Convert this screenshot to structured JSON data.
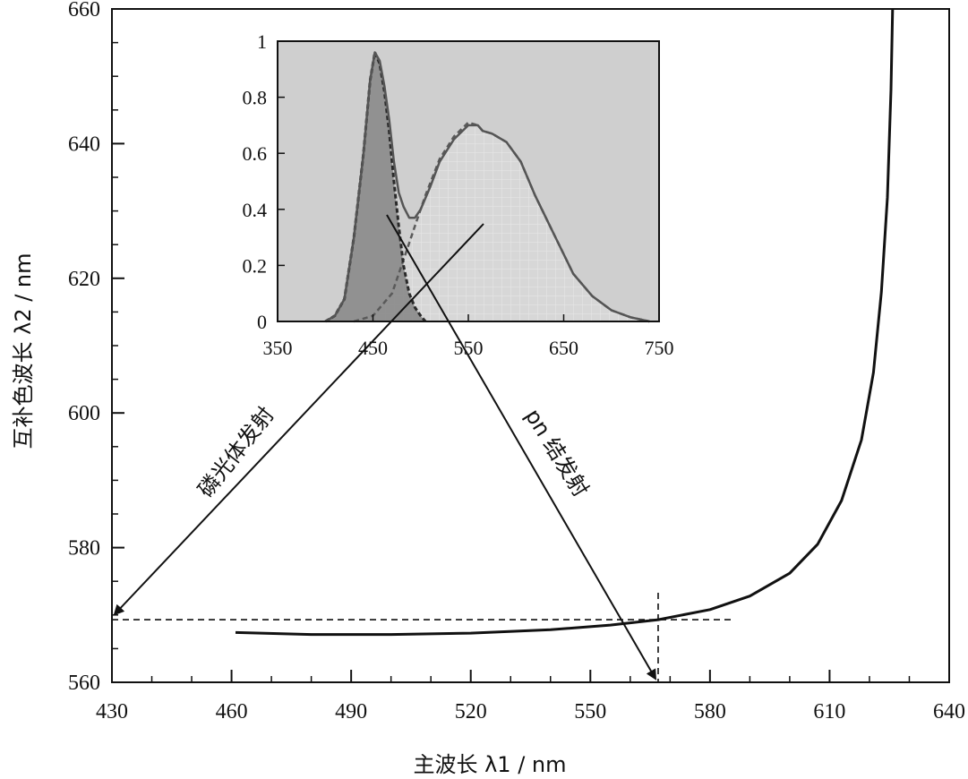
{
  "chart_data": [
    {
      "type": "line",
      "role": "main",
      "xlabel": "主波长 λ1 / nm",
      "ylabel": "互补色波长 λ2 / nm",
      "xlim": [
        430,
        640
      ],
      "ylim": [
        560,
        660
      ],
      "xticks": [
        "430",
        "460",
        "490",
        "520",
        "550",
        "580",
        "610",
        "640"
      ],
      "yticks": [
        "560",
        "580",
        "600",
        "620",
        "640",
        "660"
      ],
      "grid": false,
      "series": [
        {
          "x": [
            461,
            480,
            500,
            520,
            540,
            555,
            567,
            580,
            590,
            600,
            607,
            613,
            618,
            621,
            623,
            624.5,
            625.4,
            625.8
          ],
          "y": [
            567.4,
            567.1,
            567.1,
            567.3,
            567.8,
            568.5,
            569.3,
            570.8,
            572.8,
            576.2,
            580.5,
            587,
            596,
            606,
            618,
            632,
            648,
            660
          ]
        }
      ],
      "reference_lines": {
        "horizontal_dashed_y": 569.3,
        "vertical_dashed_x": 567
      },
      "annotations": [
        {
          "text": "磷光体发射"
        },
        {
          "text": "pn 结发射"
        }
      ]
    },
    {
      "type": "area",
      "role": "inset",
      "xlim": [
        350,
        750
      ],
      "ylim": [
        0,
        1
      ],
      "xticks": [
        "350",
        "450",
        "550",
        "650",
        "750"
      ],
      "yticks": [
        "0",
        "0.2",
        "0.4",
        "0.6",
        "0.8",
        "1"
      ],
      "series": [
        {
          "x": [
            400,
            410,
            420,
            430,
            440,
            447,
            452,
            457,
            462,
            467,
            472,
            477,
            482,
            488,
            494,
            500,
            505
          ],
          "y": [
            0.0,
            0.02,
            0.08,
            0.3,
            0.6,
            0.86,
            0.96,
            0.92,
            0.82,
            0.68,
            0.5,
            0.34,
            0.2,
            0.1,
            0.05,
            0.02,
            0.0
          ]
        },
        {
          "x": [
            430,
            450,
            470,
            485,
            495,
            505,
            520,
            535,
            550,
            560,
            565,
            575,
            590,
            605,
            620,
            640,
            660,
            680,
            700,
            720,
            740
          ],
          "y": [
            0.0,
            0.02,
            0.1,
            0.25,
            0.35,
            0.45,
            0.58,
            0.66,
            0.71,
            0.7,
            0.68,
            0.67,
            0.64,
            0.57,
            0.45,
            0.31,
            0.17,
            0.09,
            0.04,
            0.015,
            0.0
          ]
        },
        {
          "x": [
            400,
            410,
            420,
            430,
            440,
            447,
            452,
            457,
            462,
            467,
            472,
            477,
            482,
            488,
            494,
            500,
            510,
            520,
            535,
            550,
            560,
            565,
            575,
            590,
            605,
            620,
            640,
            660,
            680,
            700,
            720,
            740
          ],
          "y": [
            0.0,
            0.02,
            0.08,
            0.3,
            0.6,
            0.86,
            0.96,
            0.93,
            0.84,
            0.72,
            0.57,
            0.46,
            0.41,
            0.37,
            0.37,
            0.4,
            0.48,
            0.57,
            0.65,
            0.7,
            0.7,
            0.68,
            0.67,
            0.64,
            0.57,
            0.45,
            0.31,
            0.17,
            0.09,
            0.04,
            0.015,
            0.0
          ]
        }
      ]
    }
  ]
}
